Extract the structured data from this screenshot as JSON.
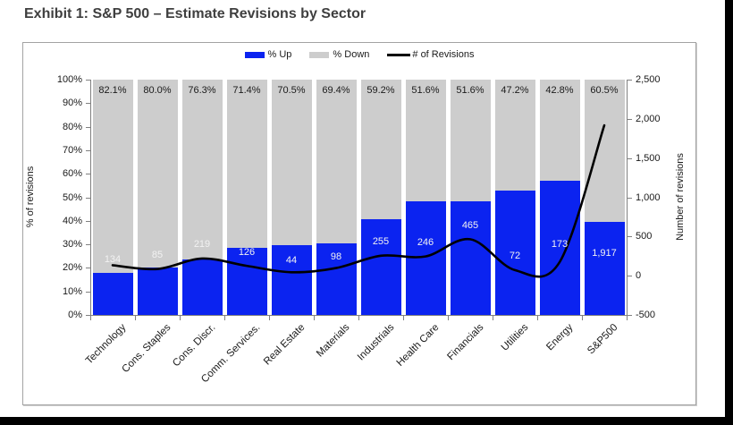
{
  "title": "Exhibit 1: S&P 500 – Estimate Revisions by Sector",
  "legend": {
    "items": [
      {
        "label": "% Up",
        "swatch": "bar",
        "color": "#0b23f0"
      },
      {
        "label": "% Down",
        "swatch": "bar",
        "color": "#cdcdcd"
      },
      {
        "label": "# of Revisions",
        "swatch": "line",
        "color": "#000000"
      }
    ]
  },
  "colors": {
    "up_bar": "#0b23f0",
    "down_bar": "#cdcdcd",
    "line": "#000000",
    "axis": "#808080",
    "label_on_bar": "#f2f2f2",
    "text": "#1a1a1a"
  },
  "chart_data": {
    "type": "combo: 100% stacked bar + line (secondary axis)",
    "categories": [
      "Technology",
      "Cons. Staples",
      "Cons. Discr.",
      "Comm. Services.",
      "Real Estate",
      "Materials",
      "Industrials",
      "Health Care",
      "Financials",
      "Utilities",
      "Energy",
      "S&P500"
    ],
    "series": [
      {
        "name": "% Up",
        "type": "bar",
        "axis": "left",
        "color": "#0b23f0",
        "values": [
          17.9,
          20.0,
          23.7,
          28.6,
          29.5,
          30.6,
          40.8,
          48.4,
          48.4,
          52.8,
          57.2,
          39.5
        ]
      },
      {
        "name": "% Down",
        "type": "bar",
        "axis": "left",
        "color": "#cdcdcd",
        "values": [
          82.1,
          80.0,
          76.3,
          71.4,
          70.5,
          69.4,
          59.2,
          51.6,
          51.6,
          47.2,
          42.8,
          60.5
        ],
        "labels": [
          "82.1%",
          "80.0%",
          "76.3%",
          "71.4%",
          "70.5%",
          "69.4%",
          "59.2%",
          "51.6%",
          "51.6%",
          "47.2%",
          "42.8%",
          "60.5%"
        ]
      },
      {
        "name": "# of Revisions",
        "type": "line",
        "axis": "right",
        "color": "#000000",
        "values": [
          134,
          85,
          219,
          126,
          44,
          98,
          255,
          246,
          465,
          72,
          173,
          1917
        ],
        "labels": [
          "134",
          "85",
          "219",
          "126",
          "44",
          "98",
          "255",
          "246",
          "465",
          "72",
          "173",
          "1,917"
        ]
      }
    ],
    "left_axis": {
      "title": "% of revisions",
      "min": 0,
      "max": 100,
      "tick_labels": [
        "0%",
        "10%",
        "20%",
        "30%",
        "40%",
        "50%",
        "60%",
        "70%",
        "80%",
        "90%",
        "100%"
      ]
    },
    "right_axis": {
      "title": "Number of revisions",
      "min": -500,
      "max": 2500,
      "tick_labels": [
        "-500",
        "0",
        "500",
        "1,000",
        "1,500",
        "2,000",
        "2,500"
      ]
    },
    "stacked_total": 100,
    "gridlines": false,
    "legend_position": "top-center"
  }
}
